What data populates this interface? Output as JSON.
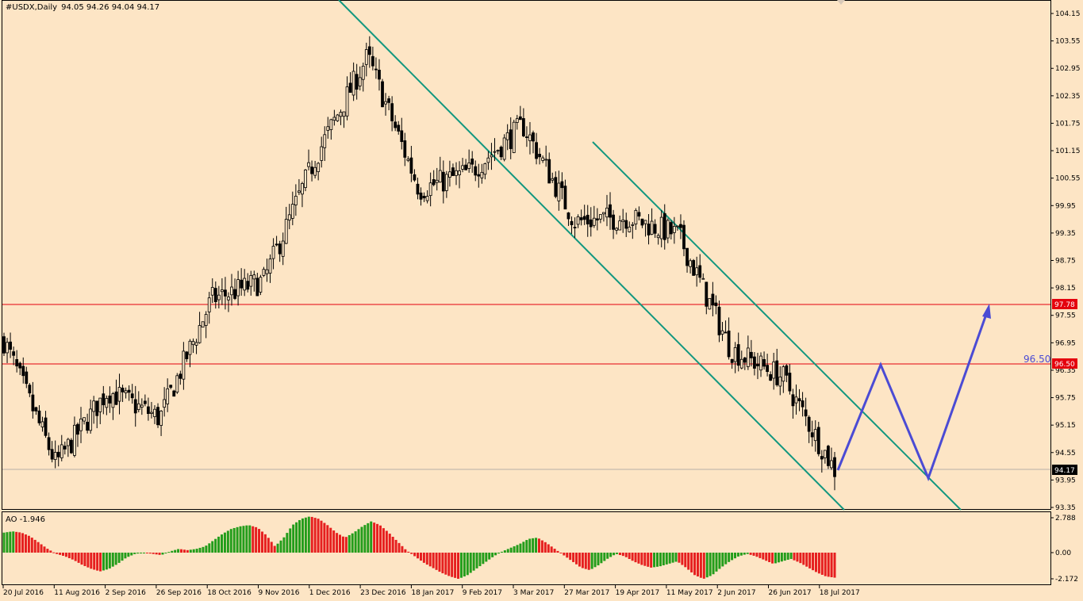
{
  "header": {
    "symbol": "#USDX,Daily",
    "ohlc": "94.05 94.26 94.04 94.17"
  },
  "indicator": {
    "label": "AO -1.946",
    "axis_labels": [
      "2.788",
      "0.00",
      "-2.172"
    ]
  },
  "levels": {
    "resistance_label": "97.78",
    "target_label": "96.50",
    "target_text": "96.50",
    "current_price": "94.17"
  },
  "colors": {
    "background": "#fde5c5",
    "candle": "#000000",
    "channel": "#12977f",
    "level_line": "#e4000d",
    "projection": "#4b4bd4",
    "ao_up": "#239d1b",
    "ao_down": "#e61f1f"
  },
  "chart_data": {
    "type": "candlestick",
    "title": "#USDX,Daily",
    "x_axis_labels": [
      "20 Jul 2016",
      "11 Aug 2016",
      "2 Sep 2016",
      "26 Sep 2016",
      "18 Oct 2016",
      "9 Nov 2016",
      "1 Dec 2016",
      "23 Dec 2016",
      "18 Jan 2017",
      "9 Feb 2017",
      "3 Mar 2017",
      "27 Mar 2017",
      "19 Apr 2017",
      "11 May 2017",
      "2 Jun 2017",
      "26 Jun 2017",
      "18 Jul 2017"
    ],
    "y_axis_labels": [
      "104.15",
      "103.55",
      "102.95",
      "102.35",
      "101.75",
      "101.15",
      "100.55",
      "99.95",
      "99.35",
      "98.75",
      "98.15",
      "97.55",
      "96.95",
      "96.35",
      "95.75",
      "95.15",
      "94.55",
      "93.95",
      "93.35"
    ],
    "ylim": [
      93.35,
      104.15
    ],
    "close_path": [
      [
        "20 Jul 2016",
        97.0
      ],
      [
        "11 Aug 2016",
        94.3
      ],
      [
        "2 Sep 2016",
        95.9
      ],
      [
        "26 Sep 2016",
        95.3
      ],
      [
        "18 Oct 2016",
        97.9
      ],
      [
        "9 Nov 2016",
        98.3
      ],
      [
        "1 Dec 2016",
        101.0
      ],
      [
        "23 Dec 2016",
        103.2
      ],
      [
        "18 Jan 2017",
        100.3
      ],
      [
        "9 Feb 2017",
        100.7
      ],
      [
        "3 Mar 2017",
        101.7
      ],
      [
        "27 Mar 2017",
        99.6
      ],
      [
        "19 Apr 2017",
        99.7
      ],
      [
        "11 May 2017",
        99.3
      ],
      [
        "2 Jun 2017",
        96.8
      ],
      [
        "26 Jun 2017",
        96.2
      ],
      [
        "18 Jul 2017",
        94.17
      ]
    ],
    "horizontal_levels": [
      97.78,
      96.5,
      94.17
    ],
    "projection_path": [
      94.17,
      96.5,
      93.95,
      97.78
    ],
    "ao_ylim": [
      -2.172,
      2.788
    ],
    "ao_values": [
      1.6,
      1.7,
      1.6,
      1.3,
      0.8,
      0.3,
      -0.1,
      -0.3,
      -0.6,
      -1.0,
      -1.3,
      -1.5,
      -1.3,
      -0.9,
      -0.4,
      -0.1,
      0.0,
      -0.1,
      -0.2,
      0.1,
      0.3,
      0.2,
      0.3,
      0.5,
      1.0,
      1.5,
      1.9,
      2.1,
      2.2,
      2.0,
      1.4,
      0.5,
      1.2,
      2.2,
      2.7,
      2.9,
      2.7,
      2.2,
      1.6,
      1.2,
      1.6,
      2.1,
      2.5,
      2.2,
      1.6,
      0.9,
      0.2,
      -0.3,
      -0.8,
      -1.2,
      -1.6,
      -1.9,
      -2.1,
      -1.8,
      -1.3,
      -0.8,
      -0.3,
      0.1,
      0.4,
      0.7,
      1.1,
      1.2,
      0.8,
      0.3,
      -0.2,
      -0.7,
      -1.2,
      -1.4,
      -1.0,
      -0.5,
      -0.1,
      -0.3,
      -0.7,
      -1.0,
      -1.2,
      -1.1,
      -0.9,
      -0.7,
      -1.2,
      -1.8,
      -2.1,
      -1.8,
      -1.2,
      -0.7,
      -0.3,
      -0.1,
      -0.3,
      -0.6,
      -0.9,
      -0.7,
      -0.5,
      -0.8,
      -1.2,
      -1.6,
      -1.9,
      -2.0
    ]
  }
}
